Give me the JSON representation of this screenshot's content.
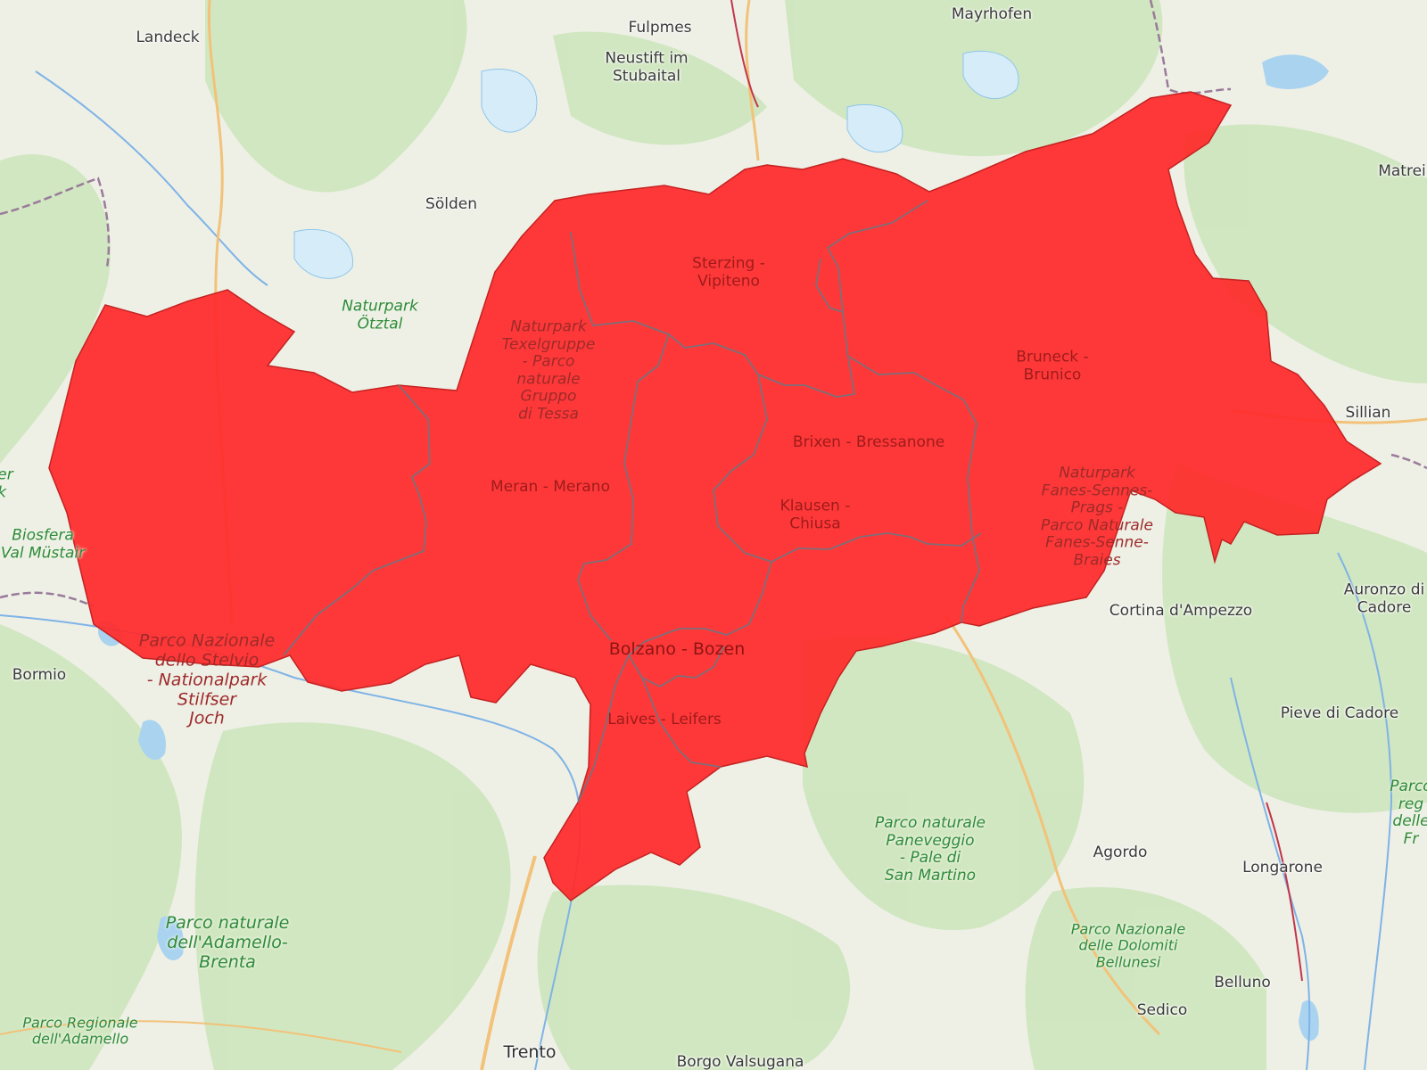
{
  "map": {
    "highlight_color": "#ff2a2a",
    "district_border_color": "#7d6f7a",
    "base_colors": {
      "land": "#eef0e6",
      "forest": "#cfe6bf",
      "water": "#aad3f0",
      "river": "#7fb3e6",
      "road": "#f2c27a"
    },
    "districts": [
      {
        "id": "vinschgau"
      },
      {
        "id": "burggrafenamt"
      },
      {
        "id": "wipptal"
      },
      {
        "id": "pustertal"
      },
      {
        "id": "eisacktal"
      },
      {
        "id": "salten-schlern"
      },
      {
        "id": "bozen"
      },
      {
        "id": "ueberetsch-unterland"
      }
    ]
  },
  "labels": {
    "landeck": "Landeck",
    "fulpmes": "Fulpmes",
    "mayrhofen": "Mayrhofen",
    "neustift": "Neustift im\nStubaital",
    "soelden": "Sölden",
    "matrei": "Matrei",
    "naturpark_oetztal": "Naturpark\nÖtztal",
    "sterzing": "Sterzing -\nVipiteno",
    "naturpark_texelgruppe": "Naturpark\nTexelgruppe\n- Parco\nnaturale\nGruppo\ndi Tessa",
    "bruneck": "Bruneck -\nBrunico",
    "sillian": "Sillian",
    "brixen": "Brixen - Bressanone",
    "meran": "Meran - Merano",
    "klausen": "Klausen -\nChiusa",
    "naturpark_fanes": "Naturpark\nFanes-Sennes-\nPrags -\nParco Naturale\nFanes-Senne-\nBraies",
    "biosfera": "Biosfera\nVal Müstair",
    "edge_park": "er\nk",
    "parco_stelvio": "Parco Nazionale\ndello Stelvio\n- Nationalpark\nStilfser\nJoch",
    "bormio": "Bormio",
    "bolzano": "Bolzano - Bozen",
    "cortina": "Cortina d'Ampezzo",
    "auronzo": "Auronzo di\nCadore",
    "laives": "Laives - Leifers",
    "pieve": "Pieve di Cadore",
    "parco_paneveggio": "Parco naturale\nPaneveggio\n- Pale di\nSan Martino",
    "agordo": "Agordo",
    "longarone": "Longarone",
    "parco_regionale_edge": "Parco\nreg\ndelle\nFr",
    "parco_adamello_brenta": "Parco naturale\ndell'Adamello-\nBrenta",
    "parco_dolomiti": "Parco Nazionale\ndelle Dolomiti\nBellunesi",
    "parco_regionale_adamello": "Parco Regionale\ndell'Adamello",
    "belluno": "Belluno",
    "sedico": "Sedico",
    "trento": "Trento",
    "borgo": "Borgo Valsugana"
  }
}
